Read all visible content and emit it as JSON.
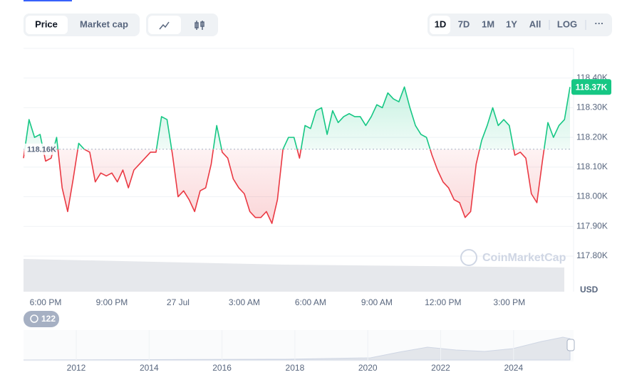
{
  "chart_data": {
    "type": "line",
    "categories": [
      null,
      null,
      null,
      null,
      "6:00 PM",
      null,
      null,
      null,
      null,
      null,
      null,
      null,
      null,
      null,
      null,
      null,
      "9:00 PM",
      null,
      null,
      null,
      null,
      null,
      null,
      null,
      null,
      null,
      null,
      null,
      "27 Jul",
      null,
      null,
      null,
      null,
      null,
      null,
      null,
      null,
      null,
      null,
      null,
      "3:00 AM",
      null,
      null,
      null,
      null,
      null,
      null,
      null,
      null,
      null,
      null,
      null,
      "6:00 AM",
      null,
      null,
      null,
      null,
      null,
      null,
      null,
      null,
      null,
      null,
      null,
      "9:00 AM",
      null,
      null,
      null,
      null,
      null,
      null,
      null,
      null,
      null,
      null,
      null,
      "12:00 PM",
      null,
      null,
      null,
      null,
      null,
      null,
      null,
      null,
      null,
      null,
      null,
      "3:00 PM",
      null,
      null,
      null,
      null,
      null,
      null,
      null,
      null,
      null,
      null,
      null
    ],
    "values": [
      118130,
      118260,
      118200,
      118210,
      118120,
      118130,
      118200,
      118030,
      117950,
      118060,
      118180,
      118160,
      118150,
      118050,
      118080,
      118070,
      118080,
      118050,
      118090,
      118030,
      118090,
      118110,
      118130,
      118150,
      118150,
      118270,
      118260,
      118140,
      118000,
      118020,
      117990,
      117950,
      118020,
      118030,
      118110,
      118240,
      118150,
      118130,
      118060,
      118030,
      118010,
      117950,
      117930,
      117930,
      117950,
      117910,
      117990,
      118160,
      118200,
      118200,
      118130,
      118240,
      118230,
      118290,
      118300,
      118210,
      118290,
      118250,
      118270,
      118280,
      118270,
      118270,
      118240,
      118270,
      118310,
      118300,
      118350,
      118330,
      118320,
      118370,
      118300,
      118240,
      118210,
      118200,
      118140,
      118090,
      118050,
      118030,
      117990,
      117980,
      117930,
      117950,
      118110,
      118190,
      118240,
      118300,
      118240,
      118260,
      118240,
      118140,
      118150,
      118130,
      118010,
      117980,
      118120,
      118250,
      118200,
      118240,
      118260,
      118370
    ],
    "up_color": "#16c784",
    "down_color": "#ea3943",
    "reference": {
      "value": 118160,
      "label": "118.16K"
    },
    "last_price": {
      "value": 118370,
      "label": "118.37K"
    },
    "ylim": [
      117680,
      118500
    ],
    "yticks": [
      {
        "value": 117800,
        "label": "117.80K"
      },
      {
        "value": 117900,
        "label": "117.90K"
      },
      {
        "value": 118000,
        "label": "118.00K"
      },
      {
        "value": 118100,
        "label": "118.10K"
      },
      {
        "value": 118200,
        "label": "118.20K"
      },
      {
        "value": 118300,
        "label": "118.30K"
      },
      {
        "value": 118400,
        "label": "118.40K"
      }
    ],
    "y_unit": "USD",
    "grid": true
  },
  "controls": {
    "tabs": [
      "Price",
      "Market cap"
    ],
    "ranges": [
      "1D",
      "7D",
      "1M",
      "1Y",
      "All"
    ],
    "log": "LOG",
    "more": "···"
  },
  "event_badge": "122",
  "watermark": "CoinMarketCap",
  "navigator": {
    "years": [
      2012,
      2014,
      2016,
      2018,
      2020,
      2022,
      2024
    ]
  }
}
